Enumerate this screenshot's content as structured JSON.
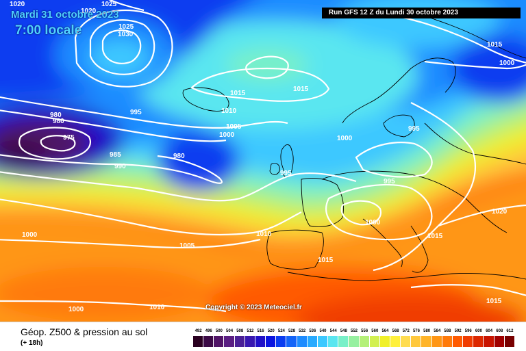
{
  "header": {
    "date": "Mardi 31 octobre 2023",
    "time": "7:00 locale",
    "run": "Run GFS 12 Z du Lundi 30 octobre 2023"
  },
  "copyright": "Copyright © 2023 Meteociel.fr",
  "footer": {
    "title": "Géop. Z500 & pression au sol",
    "subtitle": "(+ 18h)"
  },
  "scale": {
    "ticks": [
      "492",
      "496",
      "500",
      "504",
      "508",
      "512",
      "516",
      "520",
      "524",
      "528",
      "532",
      "536",
      "540",
      "544",
      "548",
      "552",
      "556",
      "560",
      "564",
      "568",
      "572",
      "576",
      "580",
      "584",
      "588",
      "592",
      "596",
      "600",
      "604",
      "608",
      "612"
    ],
    "colors": [
      "#2a0020",
      "#3c0a46",
      "#501466",
      "#5a1e82",
      "#4a2096",
      "#3818b0",
      "#2010c8",
      "#0a14e0",
      "#0a3cf0",
      "#1464f8",
      "#1e8cff",
      "#28aaff",
      "#3cc8ff",
      "#5ae6f0",
      "#78f0c8",
      "#96f0a0",
      "#b4f078",
      "#d2f050",
      "#f0f028",
      "#fff03c",
      "#ffdc50",
      "#ffc83c",
      "#ffb428",
      "#ff9614",
      "#ff7a0a",
      "#ff5a00",
      "#f03c00",
      "#dc2800",
      "#c81400",
      "#a00000",
      "#780000"
    ]
  },
  "isobars": [
    "1020",
    "1025",
    "1020",
    "1025",
    "1030",
    "1015",
    "1015",
    "1005",
    "1000",
    "980",
    "980",
    "975",
    "995",
    "1010",
    "1005",
    "1000",
    "985",
    "990",
    "980",
    "995",
    "1000",
    "995",
    "995",
    "1000",
    "1015",
    "1020",
    "1015",
    "1000",
    "1010",
    "1015",
    "1005",
    "1000",
    "1015",
    "1010"
  ],
  "colors": {
    "contour": "#ffffff",
    "coast": "#000000"
  }
}
